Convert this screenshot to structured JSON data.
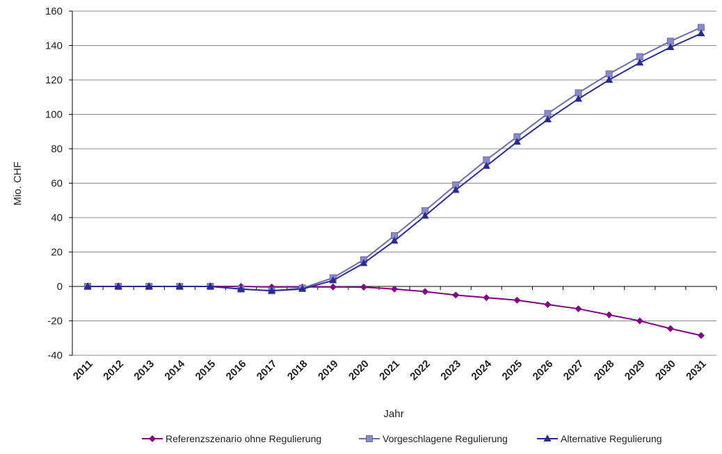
{
  "chart_data": {
    "type": "line",
    "title": "",
    "xlabel": "Jahr",
    "ylabel": "Mio. CHF",
    "ylim": [
      -40,
      160
    ],
    "yticks": [
      -40,
      -20,
      0,
      20,
      40,
      60,
      80,
      100,
      120,
      140,
      160
    ],
    "grid": "horizontal",
    "legend_position": "bottom",
    "categories": [
      "2011",
      "2012",
      "2013",
      "2014",
      "2015",
      "2016",
      "2017",
      "2018",
      "2019",
      "2020",
      "2021",
      "2022",
      "2023",
      "2024",
      "2025",
      "2026",
      "2027",
      "2028",
      "2029",
      "2030",
      "2031"
    ],
    "series": [
      {
        "name": "Referenzszenario ohne Regulierung",
        "color": "#800080",
        "marker": "diamond",
        "values": [
          0,
          0,
          0,
          0,
          0,
          0,
          -0.3,
          -0.3,
          -0.3,
          -0.4,
          -1.5,
          -3,
          -5,
          -6.5,
          -8,
          -10.5,
          -13,
          -16.5,
          -20,
          -24.5,
          -28.5
        ]
      },
      {
        "name": "Vorgeschlagene Regulierung",
        "color": "#6b6ba8",
        "marker": "square",
        "values": [
          0,
          0,
          0,
          0,
          0,
          -1.5,
          -2.5,
          -1,
          5,
          15.5,
          29.5,
          44,
          59,
          73.5,
          87,
          100.5,
          112.5,
          123.5,
          133.5,
          142.5,
          150.5
        ]
      },
      {
        "name": "Alternative Regulierung",
        "color": "#2b2b8f",
        "marker": "triangle",
        "values": [
          0,
          0,
          0,
          0,
          0,
          -1.5,
          -2.5,
          -1.5,
          3.5,
          13.5,
          26.5,
          41,
          56,
          70,
          84,
          97,
          109,
          120,
          130,
          139,
          147
        ]
      }
    ]
  }
}
